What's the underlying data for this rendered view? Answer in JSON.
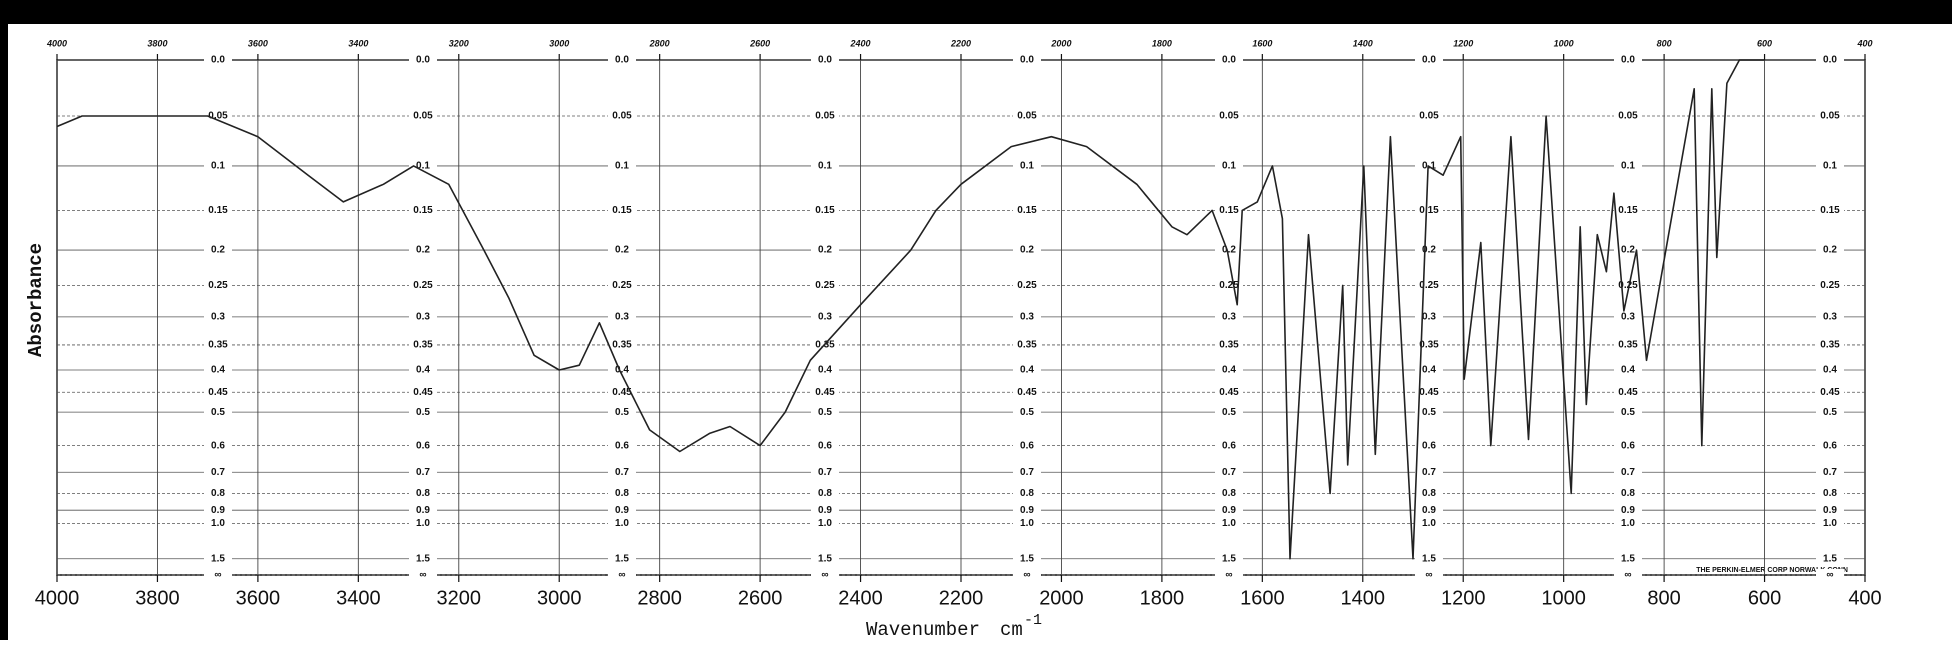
{
  "chart_data": {
    "type": "line",
    "ylabel": "Absorbance",
    "xlabel": "Wavenumber",
    "xlabel_unit": "cm",
    "xlabel_unit_exp": "-1",
    "footer": "THE PERKIN-ELMER CORP NORWALK CONN",
    "color": "#222222",
    "grid": true,
    "y_scale": "transmittance",
    "xlim": [
      4000,
      400
    ],
    "xticks": [
      4000,
      3800,
      3600,
      3400,
      3200,
      3000,
      2800,
      2600,
      2400,
      2200,
      2000,
      1800,
      1600,
      1400,
      1200,
      1000,
      800,
      600,
      400
    ],
    "x2ticks": [
      4000,
      3800,
      3600,
      3400,
      3200,
      3000,
      2800,
      2600,
      2400,
      2200,
      2000,
      1800,
      1600,
      1400,
      1200,
      1000,
      800,
      600,
      400
    ],
    "ylim": [
      0,
      "Infinity"
    ],
    "yticks": [
      {
        "value": 0,
        "label": "0.0"
      },
      0.05,
      0.1,
      0.15,
      0.2,
      0.25,
      0.3,
      0.35,
      0.4,
      0.45,
      0.5,
      0.6,
      0.7,
      0.8,
      0.9,
      {
        "value": 1,
        "label": "1.0"
      },
      1.5,
      {
        "value": "Infinity",
        "label": "∞"
      }
    ],
    "x": [
      4000,
      3950,
      3850,
      3700,
      3600,
      3500,
      3430,
      3350,
      3290,
      3220,
      3150,
      3100,
      3050,
      3000,
      2960,
      2920,
      2880,
      2820,
      2760,
      2700,
      2660,
      2600,
      2550,
      2500,
      2400,
      2300,
      2250,
      2200,
      2100,
      2020,
      1950,
      1850,
      1780,
      1750,
      1700,
      1670,
      1650,
      1640,
      1610,
      1580,
      1560,
      1545,
      1508,
      1465,
      1440,
      1430,
      1398,
      1375,
      1345,
      1300,
      1270,
      1240,
      1205,
      1198,
      1165,
      1145,
      1105,
      1070,
      1035,
      985,
      967,
      955,
      933,
      915,
      900,
      880,
      855,
      835,
      740,
      725,
      705,
      695,
      675,
      650,
      600
    ],
    "values": [
      0.06,
      0.05,
      0.05,
      0.05,
      0.07,
      0.11,
      0.14,
      0.12,
      0.1,
      0.12,
      0.2,
      0.27,
      0.37,
      0.4,
      0.39,
      0.31,
      0.4,
      0.55,
      0.62,
      0.56,
      0.54,
      0.6,
      0.5,
      0.38,
      0.28,
      0.2,
      0.15,
      0.12,
      0.08,
      0.07,
      0.08,
      0.12,
      0.17,
      0.18,
      0.15,
      0.2,
      0.28,
      0.15,
      0.14,
      0.1,
      0.16,
      1.5,
      0.18,
      0.8,
      0.25,
      0.67,
      0.1,
      0.63,
      0.07,
      1.5,
      0.1,
      0.11,
      0.07,
      0.42,
      0.19,
      0.6,
      0.07,
      0.58,
      0.05,
      0.8,
      0.17,
      0.48,
      0.18,
      0.23,
      0.13,
      0.29,
      0.2,
      0.38,
      0.025,
      0.6,
      0.025,
      0.21,
      0.02,
      0.0,
      0.0
    ]
  }
}
